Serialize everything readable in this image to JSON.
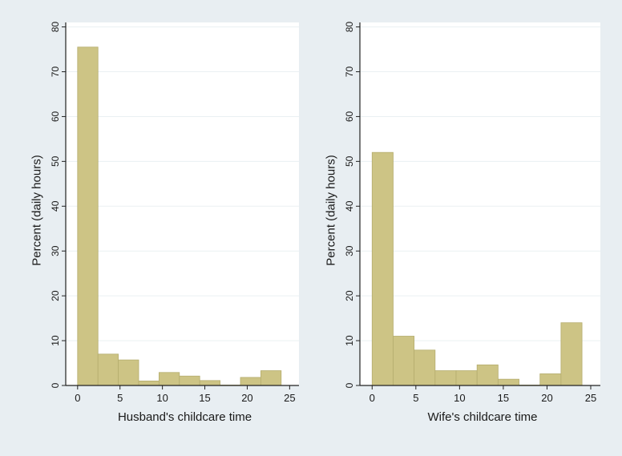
{
  "colors": {
    "background": "#e8eef2",
    "plot_area": "#ffffff",
    "bar_fill": "#cdc485",
    "bar_stroke": "#b5ad6e",
    "grid": "#eaf0f2",
    "axis": "#222222"
  },
  "chart_data": [
    {
      "type": "bar",
      "title": "",
      "xlabel": "Husband's childcare time",
      "ylabel": "Percent (daily hours)",
      "xlim": [
        -1.4,
        26.1
      ],
      "ylim": [
        0,
        81
      ],
      "xticks": [
        0,
        5,
        10,
        15,
        20,
        25
      ],
      "yticks": [
        0,
        10,
        20,
        30,
        40,
        50,
        60,
        70,
        80
      ],
      "grid": true,
      "bin_width": 2.4,
      "bins": [
        {
          "x0": 0.0,
          "x1": 2.4,
          "value": 75.5
        },
        {
          "x0": 2.4,
          "x1": 4.8,
          "value": 7.0
        },
        {
          "x0": 4.8,
          "x1": 7.2,
          "value": 5.7
        },
        {
          "x0": 7.2,
          "x1": 9.6,
          "value": 1.0
        },
        {
          "x0": 9.6,
          "x1": 12.0,
          "value": 2.9
        },
        {
          "x0": 12.0,
          "x1": 14.4,
          "value": 2.1
        },
        {
          "x0": 14.4,
          "x1": 16.8,
          "value": 1.1
        },
        {
          "x0": 16.8,
          "x1": 19.2,
          "value": 0.1
        },
        {
          "x0": 19.2,
          "x1": 21.6,
          "value": 1.8
        },
        {
          "x0": 21.6,
          "x1": 24.0,
          "value": 3.3
        }
      ]
    },
    {
      "type": "bar",
      "title": "",
      "xlabel": "Wife's childcare time",
      "ylabel": "Percent (daily hours)",
      "xlim": [
        -1.4,
        26.1
      ],
      "ylim": [
        0,
        81
      ],
      "xticks": [
        0,
        5,
        10,
        15,
        20,
        25
      ],
      "yticks": [
        0,
        10,
        20,
        30,
        40,
        50,
        60,
        70,
        80
      ],
      "grid": true,
      "bin_width": 2.4,
      "bins": [
        {
          "x0": 0.0,
          "x1": 2.4,
          "value": 52.0
        },
        {
          "x0": 2.4,
          "x1": 4.8,
          "value": 11.0
        },
        {
          "x0": 4.8,
          "x1": 7.2,
          "value": 7.9
        },
        {
          "x0": 7.2,
          "x1": 9.6,
          "value": 3.3
        },
        {
          "x0": 9.6,
          "x1": 12.0,
          "value": 3.3
        },
        {
          "x0": 12.0,
          "x1": 14.4,
          "value": 4.6
        },
        {
          "x0": 14.4,
          "x1": 16.8,
          "value": 1.4
        },
        {
          "x0": 16.8,
          "x1": 19.2,
          "value": 0.1
        },
        {
          "x0": 19.2,
          "x1": 21.6,
          "value": 2.6
        },
        {
          "x0": 21.6,
          "x1": 24.0,
          "value": 14.0
        }
      ]
    }
  ]
}
